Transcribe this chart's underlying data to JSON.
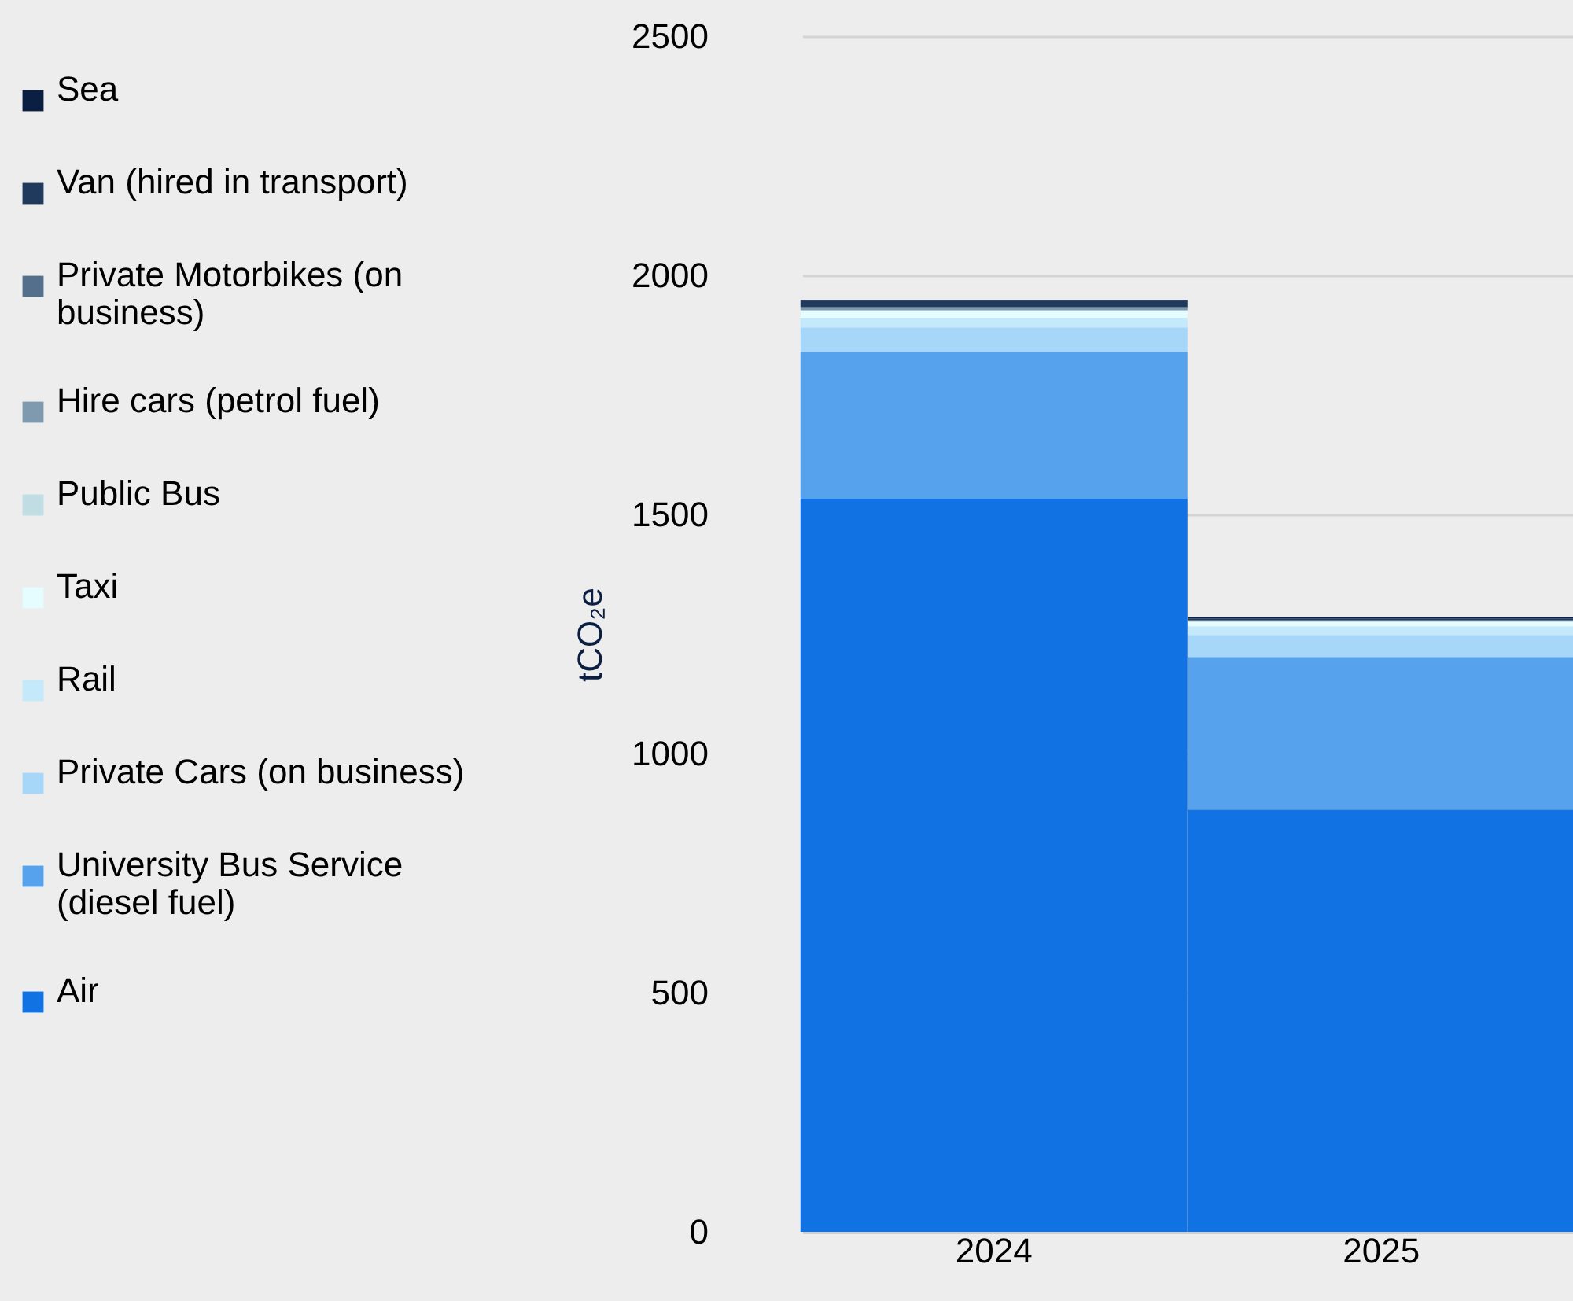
{
  "chart_data": {
    "type": "bar",
    "stacked": true,
    "ylabel": "tCO₂e",
    "categories": [
      "2024",
      "2025"
    ],
    "ylim": [
      0,
      2500
    ],
    "yticks": [
      0,
      500,
      1000,
      1500,
      2000,
      2500
    ],
    "grid": "y",
    "legend": "left",
    "series": [
      {
        "name": "Air",
        "color": "#1072e3",
        "values": [
          1533,
          883
        ]
      },
      {
        "name": "University Bus Service (diesel fuel)",
        "color": "#56a2ec",
        "values": [
          307,
          319
        ]
      },
      {
        "name": "Private Cars (on business)",
        "color": "#a6d6f8",
        "values": [
          51,
          46
        ]
      },
      {
        "name": "Rail",
        "color": "#c3e9fb",
        "values": [
          20,
          18
        ]
      },
      {
        "name": "Taxi",
        "color": "#e6fdff",
        "values": [
          16,
          10
        ]
      },
      {
        "name": "Public Bus",
        "color": "#bfdde2",
        "values": [
          null,
          null
        ]
      },
      {
        "name": "Hire cars (petrol fuel)",
        "color": "#7f9aaf",
        "values": [
          4,
          2
        ]
      },
      {
        "name": "Private Motorbikes (on business)",
        "color": "#546f8c",
        "values": [
          3,
          1
        ]
      },
      {
        "name": "Van (hired in transport)",
        "color": "#1f3a5c",
        "values": [
          12,
          3
        ]
      },
      {
        "name": "Sea",
        "color": "#0b1f42",
        "values": [
          2,
          4
        ]
      }
    ]
  }
}
